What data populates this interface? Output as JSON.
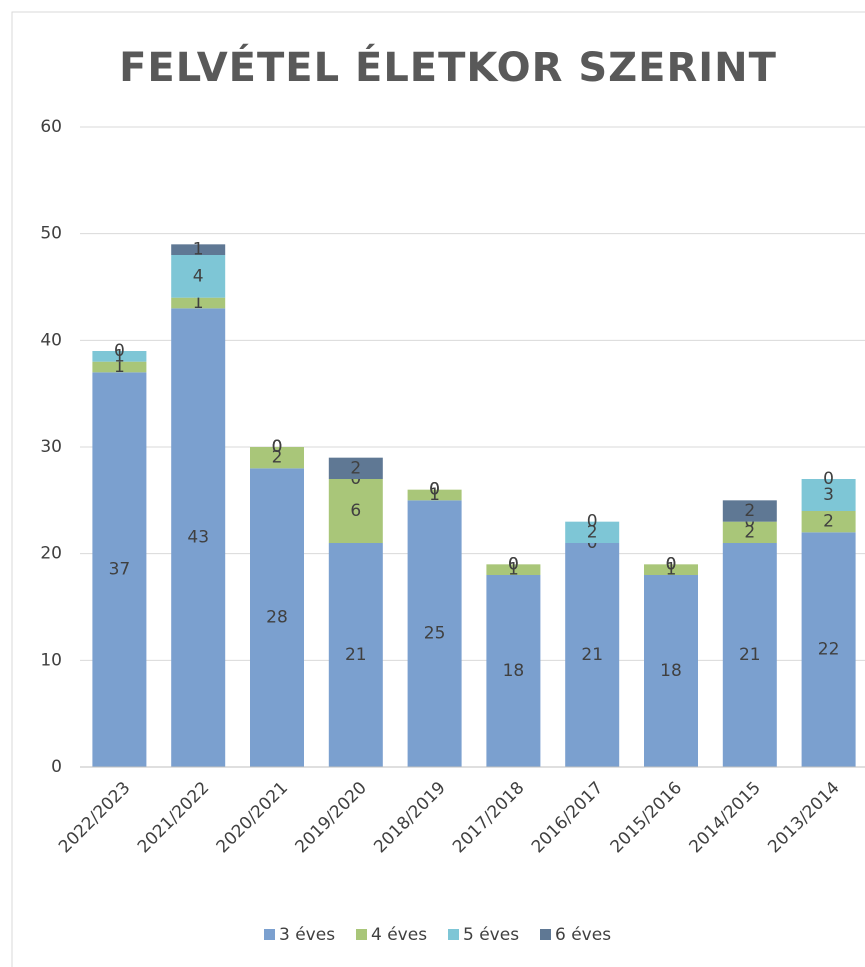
{
  "chart_data": {
    "type": "bar",
    "stacked": true,
    "title": "FELVÉTEL ÉLETKOR SZERINT",
    "categories": [
      "2022/2023",
      "2021/2022",
      "2020/2021",
      "2019/2020",
      "2018/2019",
      "2017/2018",
      "2016/2017",
      "2015/2016",
      "2014/2015",
      "2013/2014"
    ],
    "series": [
      {
        "name": "3 éves",
        "color": "#7ba0cf",
        "values": [
          37,
          43,
          28,
          21,
          25,
          18,
          21,
          18,
          21,
          22
        ]
      },
      {
        "name": "4 éves",
        "color": "#a9c679",
        "values": [
          1,
          1,
          2,
          6,
          1,
          1,
          0,
          1,
          2,
          2
        ]
      },
      {
        "name": "5 éves",
        "color": "#7ec6d6",
        "values": [
          1,
          4,
          0,
          0,
          0,
          0,
          2,
          0,
          0,
          3
        ]
      },
      {
        "name": "6 éves",
        "color": "#5f7894",
        "values": [
          0,
          1,
          0,
          2,
          0,
          0,
          0,
          0,
          2,
          0
        ]
      }
    ],
    "ylim": [
      0,
      60
    ],
    "yticks": [
      0,
      10,
      20,
      30,
      40,
      50,
      60
    ],
    "grid": true,
    "legend": "bottom",
    "data_labels": true
  }
}
